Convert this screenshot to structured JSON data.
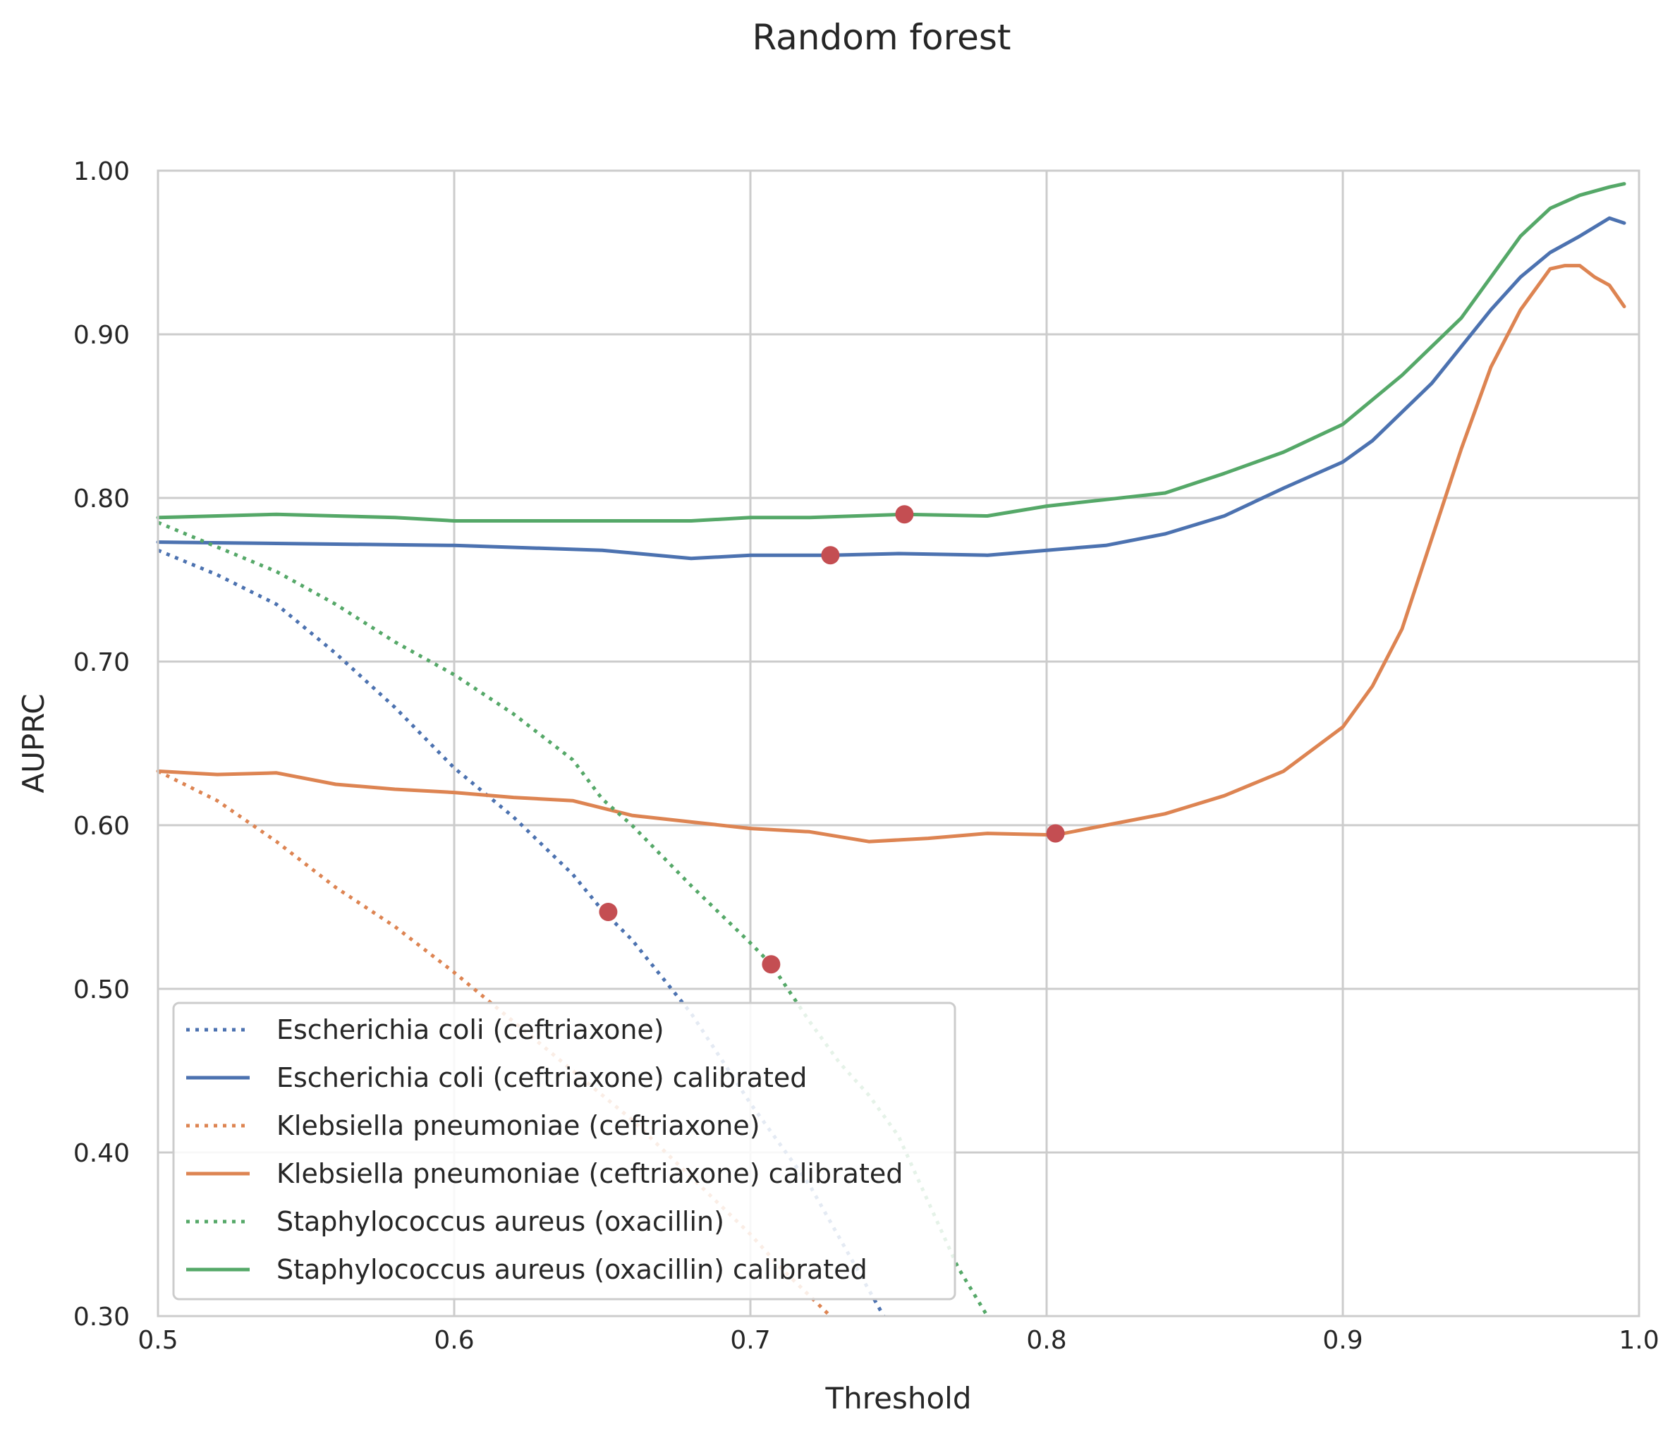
{
  "chart_data": {
    "type": "line",
    "title": "Random forest",
    "xlabel": "Threshold",
    "ylabel": "AUPRC",
    "xlim": [
      0.5,
      1.0
    ],
    "ylim": [
      0.3,
      1.0
    ],
    "xticks": [
      0.5,
      0.6,
      0.7,
      0.8,
      0.9,
      1.0
    ],
    "xtick_labels": [
      "0.5",
      "0.6",
      "0.7",
      "0.8",
      "0.9",
      "1.0"
    ],
    "yticks": [
      0.3,
      0.4,
      0.5,
      0.6,
      0.7,
      0.8,
      0.9,
      1.0
    ],
    "ytick_labels": [
      "0.30",
      "0.40",
      "0.50",
      "0.60",
      "0.70",
      "0.80",
      "0.90",
      "1.00"
    ],
    "grid": true,
    "legend_position": "lower-left",
    "series": [
      {
        "name": "Escherichia coli (ceftriaxone)",
        "color": "#4c72b0",
        "style": "dotted",
        "x": [
          0.5,
          0.52,
          0.54,
          0.56,
          0.58,
          0.6,
          0.62,
          0.64,
          0.65,
          0.66,
          0.68,
          0.7,
          0.72,
          0.745
        ],
        "y": [
          0.768,
          0.753,
          0.735,
          0.705,
          0.672,
          0.635,
          0.605,
          0.57,
          0.548,
          0.53,
          0.485,
          0.43,
          0.38,
          0.3
        ]
      },
      {
        "name": "Escherichia coli (ceftriaxone) calibrated",
        "color": "#4c72b0",
        "style": "solid",
        "x": [
          0.5,
          0.55,
          0.6,
          0.65,
          0.68,
          0.7,
          0.727,
          0.75,
          0.78,
          0.8,
          0.82,
          0.84,
          0.86,
          0.88,
          0.9,
          0.91,
          0.93,
          0.95,
          0.96,
          0.97,
          0.98,
          0.99,
          0.995
        ],
        "y": [
          0.773,
          0.772,
          0.771,
          0.768,
          0.763,
          0.765,
          0.765,
          0.766,
          0.765,
          0.768,
          0.771,
          0.778,
          0.789,
          0.806,
          0.822,
          0.835,
          0.87,
          0.915,
          0.935,
          0.95,
          0.96,
          0.971,
          0.968
        ]
      },
      {
        "name": "Klebsiella pneumoniae (ceftriaxone)",
        "color": "#dd8452",
        "style": "dotted",
        "x": [
          0.5,
          0.52,
          0.54,
          0.56,
          0.58,
          0.6,
          0.62,
          0.64,
          0.66,
          0.68,
          0.7,
          0.71,
          0.727
        ],
        "y": [
          0.633,
          0.615,
          0.59,
          0.562,
          0.538,
          0.51,
          0.48,
          0.45,
          0.42,
          0.385,
          0.35,
          0.33,
          0.3
        ]
      },
      {
        "name": "Klebsiella pneumoniae (ceftriaxone) calibrated",
        "color": "#dd8452",
        "style": "solid",
        "x": [
          0.5,
          0.52,
          0.54,
          0.56,
          0.58,
          0.6,
          0.62,
          0.64,
          0.66,
          0.68,
          0.7,
          0.72,
          0.74,
          0.76,
          0.78,
          0.803,
          0.82,
          0.84,
          0.86,
          0.88,
          0.9,
          0.91,
          0.92,
          0.93,
          0.94,
          0.95,
          0.96,
          0.97,
          0.975,
          0.98,
          0.985,
          0.99,
          0.995
        ],
        "y": [
          0.633,
          0.631,
          0.632,
          0.625,
          0.622,
          0.62,
          0.617,
          0.615,
          0.606,
          0.602,
          0.598,
          0.596,
          0.59,
          0.592,
          0.595,
          0.594,
          0.6,
          0.607,
          0.618,
          0.633,
          0.66,
          0.685,
          0.72,
          0.775,
          0.83,
          0.88,
          0.915,
          0.94,
          0.942,
          0.942,
          0.935,
          0.93,
          0.917
        ]
      },
      {
        "name": "Staphylococcus aureus (oxacillin)",
        "color": "#55a868",
        "style": "dotted",
        "x": [
          0.5,
          0.52,
          0.54,
          0.56,
          0.58,
          0.6,
          0.62,
          0.64,
          0.65,
          0.66,
          0.68,
          0.7,
          0.707,
          0.72,
          0.73,
          0.74,
          0.75,
          0.76,
          0.77,
          0.78
        ],
        "y": [
          0.785,
          0.77,
          0.755,
          0.735,
          0.712,
          0.692,
          0.668,
          0.64,
          0.616,
          0.6,
          0.563,
          0.528,
          0.515,
          0.48,
          0.455,
          0.435,
          0.41,
          0.37,
          0.33,
          0.3
        ]
      },
      {
        "name": "Staphylococcus aureus (oxacillin) calibrated",
        "color": "#55a868",
        "style": "solid",
        "x": [
          0.5,
          0.52,
          0.54,
          0.56,
          0.58,
          0.6,
          0.62,
          0.64,
          0.66,
          0.68,
          0.7,
          0.72,
          0.752,
          0.78,
          0.8,
          0.82,
          0.84,
          0.86,
          0.88,
          0.9,
          0.92,
          0.94,
          0.95,
          0.96,
          0.97,
          0.98,
          0.99,
          0.995
        ],
        "y": [
          0.788,
          0.789,
          0.79,
          0.789,
          0.788,
          0.786,
          0.786,
          0.786,
          0.786,
          0.786,
          0.788,
          0.788,
          0.79,
          0.789,
          0.795,
          0.799,
          0.803,
          0.815,
          0.828,
          0.845,
          0.875,
          0.91,
          0.935,
          0.96,
          0.977,
          0.985,
          0.99,
          0.992
        ]
      }
    ],
    "markers": {
      "color": "#c44e52",
      "points": [
        {
          "x": 0.652,
          "y": 0.547
        },
        {
          "x": 0.707,
          "y": 0.515
        },
        {
          "x": 0.727,
          "y": 0.765
        },
        {
          "x": 0.752,
          "y": 0.79
        },
        {
          "x": 0.803,
          "y": 0.595
        }
      ]
    }
  }
}
